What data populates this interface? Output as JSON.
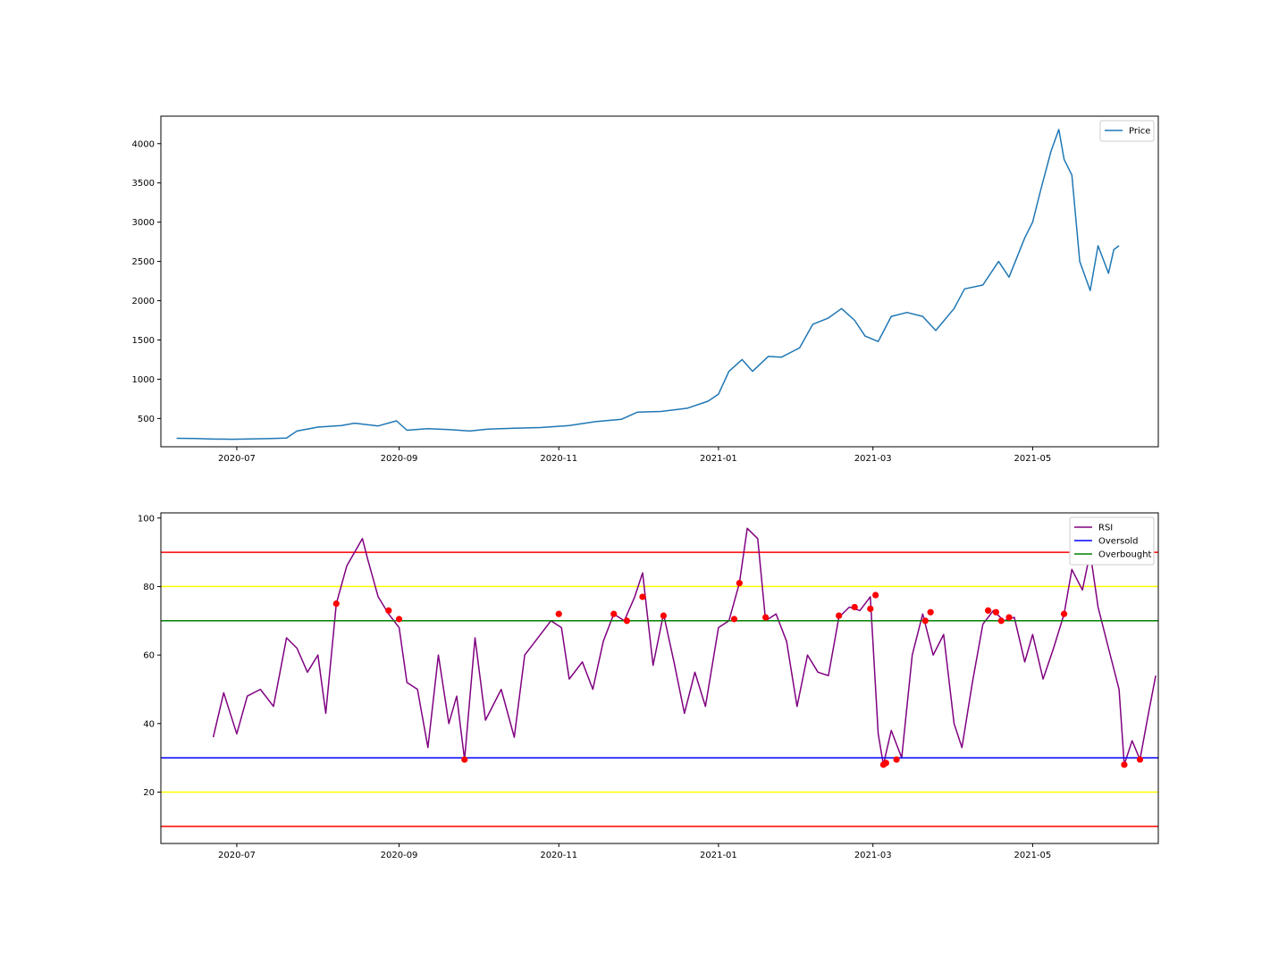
{
  "chart_data": [
    {
      "type": "line",
      "legend_position": "top-right",
      "grid": false,
      "x_ticks": [
        "2020-07",
        "2020-09",
        "2020-11",
        "2021-01",
        "2021-03",
        "2021-05"
      ],
      "y_ticks": [
        500,
        1000,
        1500,
        2000,
        2500,
        3000,
        3500,
        4000
      ],
      "xlim": [
        "2020-06-02",
        "2021-06-18"
      ],
      "ylim": [
        140,
        4350
      ],
      "color": "#1f77b4",
      "series": [
        {
          "name": "Price",
          "points": [
            [
              "2020-06-08",
              248
            ],
            [
              "2020-06-15",
              245
            ],
            [
              "2020-06-22",
              238
            ],
            [
              "2020-06-29",
              236
            ],
            [
              "2020-07-06",
              240
            ],
            [
              "2020-07-13",
              243
            ],
            [
              "2020-07-20",
              252
            ],
            [
              "2020-07-24",
              340
            ],
            [
              "2020-08-01",
              390
            ],
            [
              "2020-08-10",
              410
            ],
            [
              "2020-08-15",
              440
            ],
            [
              "2020-08-24",
              405
            ],
            [
              "2020-08-31",
              470
            ],
            [
              "2020-09-04",
              350
            ],
            [
              "2020-09-12",
              370
            ],
            [
              "2020-09-20",
              360
            ],
            [
              "2020-09-28",
              340
            ],
            [
              "2020-10-05",
              365
            ],
            [
              "2020-10-15",
              375
            ],
            [
              "2020-10-25",
              385
            ],
            [
              "2020-11-05",
              410
            ],
            [
              "2020-11-15",
              460
            ],
            [
              "2020-11-25",
              490
            ],
            [
              "2020-12-01",
              580
            ],
            [
              "2020-12-10",
              590
            ],
            [
              "2020-12-20",
              630
            ],
            [
              "2020-12-28",
              720
            ],
            [
              "2021-01-01",
              810
            ],
            [
              "2021-01-05",
              1100
            ],
            [
              "2021-01-10",
              1250
            ],
            [
              "2021-01-14",
              1100
            ],
            [
              "2021-01-20",
              1290
            ],
            [
              "2021-01-25",
              1280
            ],
            [
              "2021-02-01",
              1400
            ],
            [
              "2021-02-06",
              1700
            ],
            [
              "2021-02-12",
              1780
            ],
            [
              "2021-02-17",
              1900
            ],
            [
              "2021-02-22",
              1750
            ],
            [
              "2021-02-26",
              1550
            ],
            [
              "2021-03-03",
              1480
            ],
            [
              "2021-03-08",
              1800
            ],
            [
              "2021-03-14",
              1850
            ],
            [
              "2021-03-20",
              1800
            ],
            [
              "2021-03-25",
              1620
            ],
            [
              "2021-04-01",
              1900
            ],
            [
              "2021-04-05",
              2150
            ],
            [
              "2021-04-12",
              2200
            ],
            [
              "2021-04-18",
              2500
            ],
            [
              "2021-04-22",
              2300
            ],
            [
              "2021-04-28",
              2800
            ],
            [
              "2021-05-01",
              3000
            ],
            [
              "2021-05-04",
              3400
            ],
            [
              "2021-05-08",
              3900
            ],
            [
              "2021-05-11",
              4180
            ],
            [
              "2021-05-13",
              3800
            ],
            [
              "2021-05-16",
              3600
            ],
            [
              "2021-05-19",
              2500
            ],
            [
              "2021-05-23",
              2130
            ],
            [
              "2021-05-26",
              2700
            ],
            [
              "2021-05-30",
              2350
            ],
            [
              "2021-06-01",
              2650
            ],
            [
              "2021-06-03",
              2700
            ]
          ]
        }
      ]
    },
    {
      "type": "line",
      "legend_position": "top-right",
      "grid": false,
      "x_ticks": [
        "2020-07",
        "2020-09",
        "2020-11",
        "2021-01",
        "2021-03",
        "2021-05"
      ],
      "y_ticks": [
        20,
        40,
        60,
        80,
        100
      ],
      "xlim": [
        "2020-06-02",
        "2021-06-18"
      ],
      "ylim": [
        5,
        101.5
      ],
      "series": [
        {
          "name": "RSI",
          "color": "#800080",
          "points": [
            [
              "2020-06-22",
              36
            ],
            [
              "2020-06-26",
              49
            ],
            [
              "2020-07-01",
              37
            ],
            [
              "2020-07-05",
              48
            ],
            [
              "2020-07-10",
              50
            ],
            [
              "2020-07-15",
              45
            ],
            [
              "2020-07-20",
              65
            ],
            [
              "2020-07-24",
              62
            ],
            [
              "2020-07-28",
              55
            ],
            [
              "2020-08-01",
              60
            ],
            [
              "2020-08-04",
              43
            ],
            [
              "2020-08-08",
              75
            ],
            [
              "2020-08-12",
              86
            ],
            [
              "2020-08-18",
              94
            ],
            [
              "2020-08-20",
              88
            ],
            [
              "2020-08-24",
              77
            ],
            [
              "2020-08-28",
              72
            ],
            [
              "2020-09-01",
              68
            ],
            [
              "2020-09-04",
              52
            ],
            [
              "2020-09-08",
              50
            ],
            [
              "2020-09-12",
              33
            ],
            [
              "2020-09-16",
              60
            ],
            [
              "2020-09-20",
              40
            ],
            [
              "2020-09-23",
              48
            ],
            [
              "2020-09-26",
              29.5
            ],
            [
              "2020-09-30",
              65
            ],
            [
              "2020-10-04",
              41
            ],
            [
              "2020-10-10",
              50
            ],
            [
              "2020-10-15",
              36
            ],
            [
              "2020-10-19",
              60
            ],
            [
              "2020-10-24",
              65
            ],
            [
              "2020-10-29",
              70
            ],
            [
              "2020-11-02",
              68
            ],
            [
              "2020-11-05",
              53
            ],
            [
              "2020-11-10",
              58
            ],
            [
              "2020-11-14",
              50
            ],
            [
              "2020-11-18",
              64
            ],
            [
              "2020-11-22",
              72
            ],
            [
              "2020-11-26",
              70
            ],
            [
              "2020-11-30",
              77
            ],
            [
              "2020-12-03",
              84
            ],
            [
              "2020-12-07",
              57
            ],
            [
              "2020-12-11",
              72
            ],
            [
              "2020-12-15",
              58
            ],
            [
              "2020-12-19",
              43
            ],
            [
              "2020-12-23",
              55
            ],
            [
              "2020-12-27",
              45
            ],
            [
              "2021-01-01",
              68
            ],
            [
              "2021-01-05",
              70
            ],
            [
              "2021-01-09",
              81
            ],
            [
              "2021-01-12",
              97
            ],
            [
              "2021-01-16",
              94
            ],
            [
              "2021-01-19",
              70
            ],
            [
              "2021-01-23",
              72
            ],
            [
              "2021-01-27",
              64
            ],
            [
              "2021-01-31",
              45
            ],
            [
              "2021-02-04",
              60
            ],
            [
              "2021-02-08",
              55
            ],
            [
              "2021-02-12",
              54
            ],
            [
              "2021-02-16",
              71
            ],
            [
              "2021-02-20",
              74
            ],
            [
              "2021-02-24",
              73
            ],
            [
              "2021-02-28",
              77
            ],
            [
              "2021-03-03",
              37
            ],
            [
              "2021-03-05",
              28
            ],
            [
              "2021-03-08",
              38
            ],
            [
              "2021-03-12",
              30
            ],
            [
              "2021-03-16",
              60
            ],
            [
              "2021-03-20",
              72
            ],
            [
              "2021-03-24",
              60
            ],
            [
              "2021-03-28",
              66
            ],
            [
              "2021-04-01",
              40
            ],
            [
              "2021-04-04",
              33
            ],
            [
              "2021-04-08",
              52
            ],
            [
              "2021-04-12",
              69
            ],
            [
              "2021-04-16",
              73
            ],
            [
              "2021-04-20",
              70
            ],
            [
              "2021-04-24",
              71
            ],
            [
              "2021-04-28",
              58
            ],
            [
              "2021-05-01",
              66
            ],
            [
              "2021-05-05",
              53
            ],
            [
              "2021-05-09",
              62
            ],
            [
              "2021-05-13",
              72
            ],
            [
              "2021-05-16",
              85
            ],
            [
              "2021-05-20",
              79
            ],
            [
              "2021-05-23",
              90
            ],
            [
              "2021-05-26",
              74
            ],
            [
              "2021-05-30",
              62
            ],
            [
              "2021-06-03",
              50
            ],
            [
              "2021-06-05",
              28
            ],
            [
              "2021-06-08",
              35
            ],
            [
              "2021-06-11",
              29.5
            ],
            [
              "2021-06-14",
              42
            ],
            [
              "2021-06-17",
              54
            ]
          ]
        },
        {
          "name": "Oversold",
          "color": "#0000ff",
          "y": 30
        },
        {
          "name": "Overbought",
          "color": "#008000",
          "y": 70
        }
      ],
      "reference_lines": [
        {
          "y": 90,
          "color": "#ff0000"
        },
        {
          "y": 80,
          "color": "#ffff00"
        },
        {
          "y": 20,
          "color": "#ffff00"
        },
        {
          "y": 10,
          "color": "#ff0000"
        }
      ],
      "signal_markers": {
        "color": "#ff0000",
        "points": [
          [
            "2020-08-08",
            75
          ],
          [
            "2020-08-28",
            73
          ],
          [
            "2020-09-01",
            70.5
          ],
          [
            "2020-09-26",
            29.5
          ],
          [
            "2020-11-01",
            72
          ],
          [
            "2020-11-22",
            72
          ],
          [
            "2020-11-27",
            70
          ],
          [
            "2020-12-03",
            77
          ],
          [
            "2020-12-11",
            71.5
          ],
          [
            "2021-01-07",
            70.5
          ],
          [
            "2021-01-09",
            81
          ],
          [
            "2021-01-19",
            71
          ],
          [
            "2021-02-16",
            71.5
          ],
          [
            "2021-02-22",
            74
          ],
          [
            "2021-02-28",
            73.5
          ],
          [
            "2021-03-02",
            77.5
          ],
          [
            "2021-03-05",
            28
          ],
          [
            "2021-03-06",
            28.5
          ],
          [
            "2021-03-10",
            29.5
          ],
          [
            "2021-03-21",
            70
          ],
          [
            "2021-03-23",
            72.5
          ],
          [
            "2021-04-14",
            73
          ],
          [
            "2021-04-17",
            72.5
          ],
          [
            "2021-04-19",
            70
          ],
          [
            "2021-04-22",
            71
          ],
          [
            "2021-05-13",
            72
          ],
          [
            "2021-06-05",
            28
          ],
          [
            "2021-06-11",
            29.5
          ]
        ]
      }
    }
  ]
}
